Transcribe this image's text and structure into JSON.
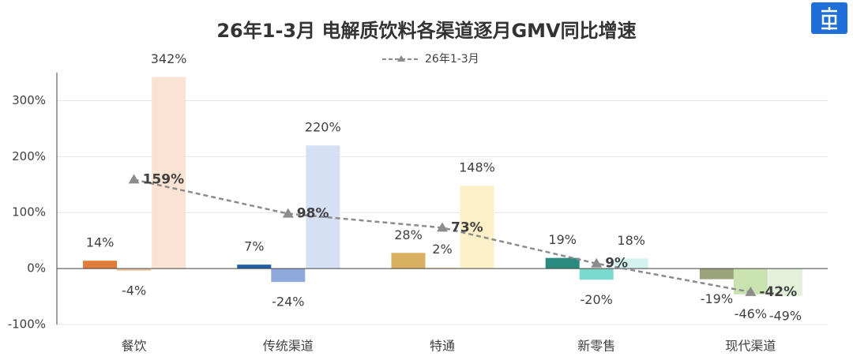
{
  "chart_data": {
    "type": "bar-line",
    "title": "26年1-3月 电解质饮料各渠道逐月GMV同比增速",
    "categories": [
      "餐饮",
      "传统渠道",
      "特通",
      "新零售",
      "现代渠道"
    ],
    "series": [
      {
        "colors": [
          "#e07b39",
          "#1f5fa3",
          "#d9b062",
          "#2a8a7f",
          "#9aa37a"
        ],
        "values": [
          14,
          7,
          28,
          19,
          -19
        ],
        "value_labels": [
          "14%",
          "7%",
          "28%",
          "19%",
          "-19%"
        ]
      },
      {
        "colors": [
          "#f4c9a6",
          "#8fa9dc",
          "#f8ecc4",
          "#7bd9cf",
          "#c9e3b0"
        ],
        "values": [
          -4,
          -24,
          2,
          -20,
          -46
        ],
        "value_labels": [
          "-4%",
          "-24%",
          "2%",
          "-20%",
          "-46%"
        ]
      },
      {
        "colors": [
          "#fbe3d4",
          "#d6e0f5",
          "#fdf0c8",
          "#d4f3ef",
          "#e4f1da"
        ],
        "values": [
          342,
          220,
          148,
          18,
          -49
        ],
        "value_labels": [
          "342%",
          "220%",
          "148%",
          "18%",
          "-49%"
        ]
      },
      {
        "name": "26年1-3月",
        "type": "line",
        "color": "#8c8c8c",
        "values": [
          159,
          98,
          73,
          9,
          -42
        ],
        "value_labels": [
          "159%",
          "98%",
          "73%",
          "9%",
          "-42%"
        ]
      }
    ],
    "ylim": [
      -100,
      350
    ],
    "yticks": [
      {
        "value": -100,
        "label": "-100%"
      },
      {
        "value": 0,
        "label": "0%"
      },
      {
        "value": 100,
        "label": "100%"
      },
      {
        "value": 200,
        "label": "200%"
      },
      {
        "value": 300,
        "label": "300%"
      }
    ],
    "grid": true
  }
}
